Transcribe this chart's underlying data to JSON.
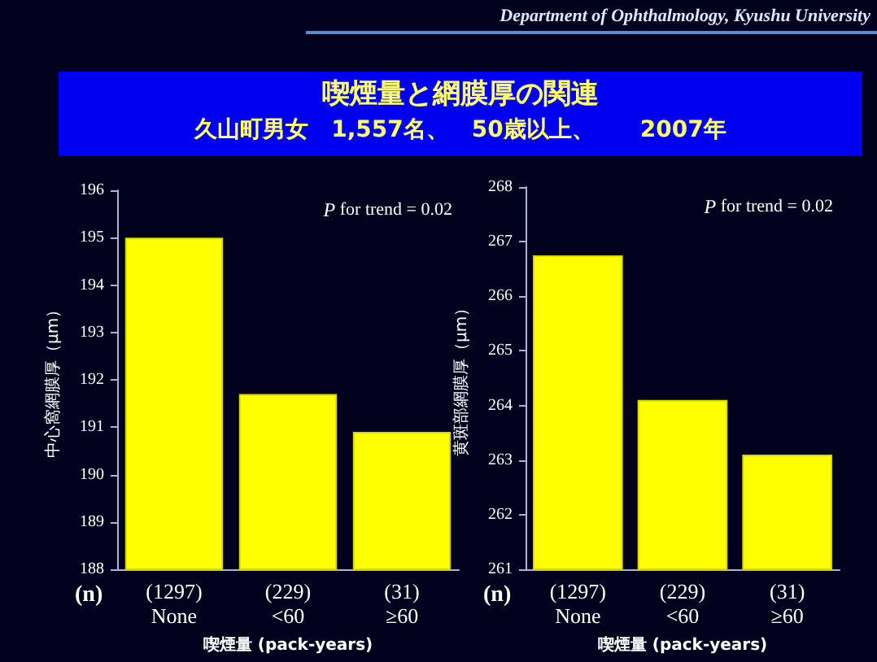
{
  "chart_data": [
    {
      "type": "bar",
      "title": "喫煙量と網膜厚の関連",
      "subtitle": "久山町男女　1,557名、　50歳以上、　　2007年",
      "annotations": [
        "P for trend = 0.02",
        "(n)",
        "Department of Ophthalmology, Kyushu University"
      ],
      "categories": [
        "(1297)\nNone",
        "(229)\n<60",
        "(31)\n≥60"
      ],
      "values": [
        195.0,
        191.7,
        190.9
      ],
      "color": "#ffff00",
      "ylabel": "中心窩網膜厚（μm）",
      "xlabel": "喫煙量 (pack-years)",
      "ylim": [
        188,
        196
      ],
      "yticks": [
        188,
        189,
        190,
        191,
        192,
        193,
        194,
        195,
        196
      ]
    },
    {
      "type": "bar",
      "annotations": [
        "P for trend = 0.02",
        "(n)"
      ],
      "categories": [
        "(1297)\nNone",
        "(229)\n<60",
        "(31)\n≥60"
      ],
      "values": [
        266.75,
        264.1,
        263.1
      ],
      "color": "#ffff00",
      "ylabel": "黄斑部網膜厚（μm）",
      "xlabel": "喫煙量 (pack-years)",
      "ylim": [
        261,
        268
      ],
      "yticks": [
        261,
        262,
        263,
        264,
        265,
        266,
        267,
        268
      ]
    }
  ]
}
